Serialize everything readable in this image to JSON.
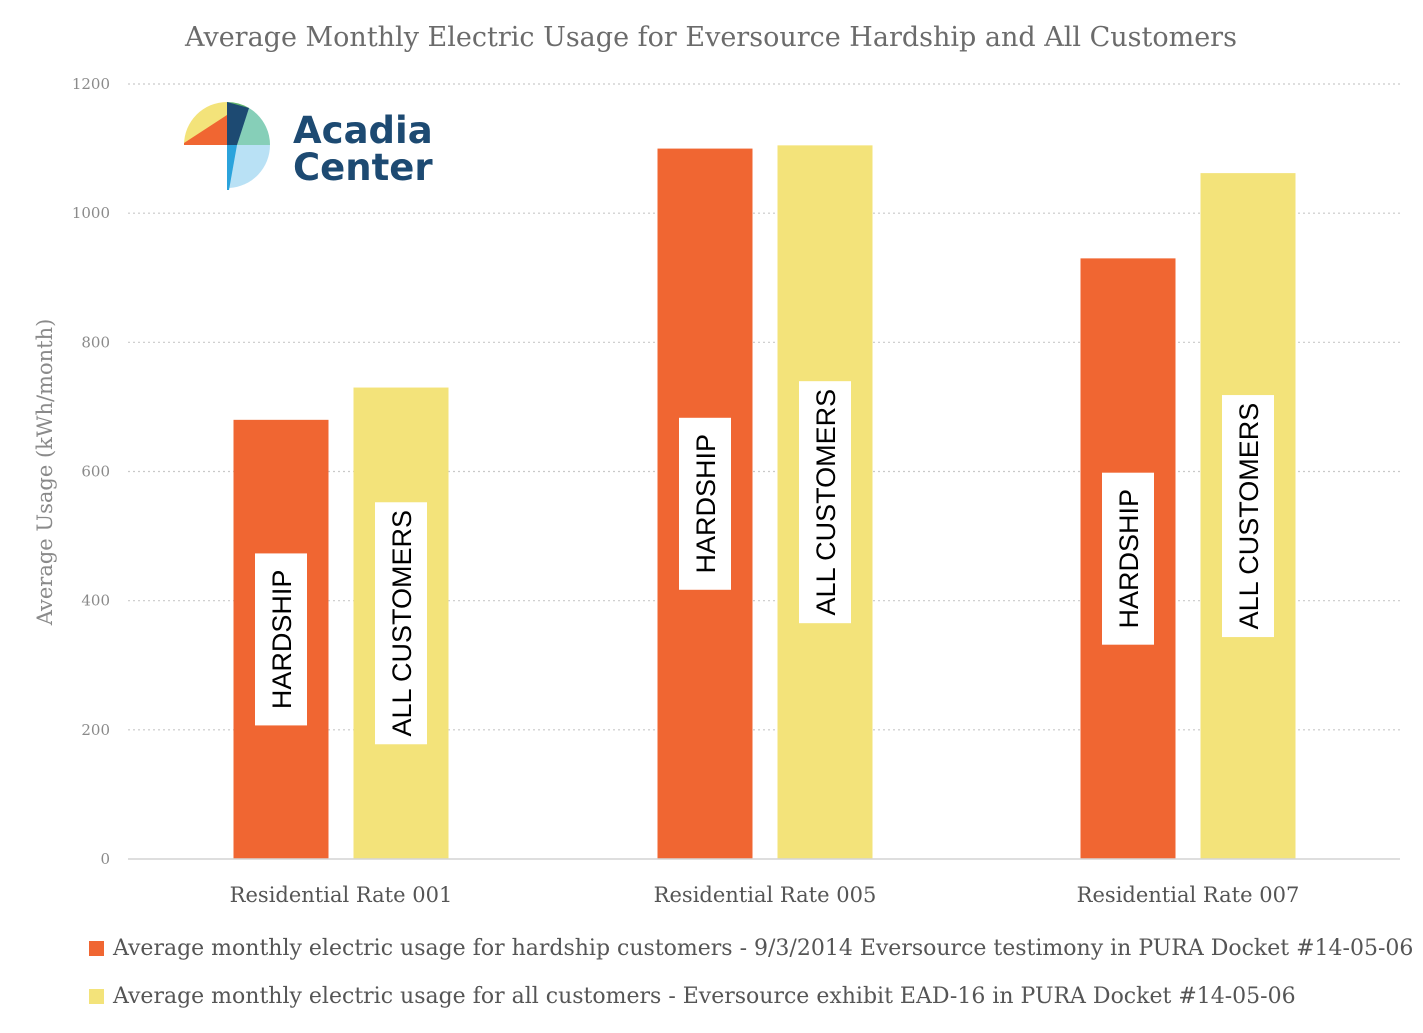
{
  "chart_data": {
    "type": "bar",
    "title": "Average Monthly Electric Usage for Eversource Hardship and All Customers",
    "ylabel": "Average Usage (kWh/month)",
    "xlabel": "",
    "ylim": [
      0,
      1200
    ],
    "yticks": [
      0,
      200,
      400,
      600,
      800,
      1000,
      1200
    ],
    "grid": true,
    "legend_position": "bottom",
    "categories": [
      "Residential Rate 001",
      "Residential Rate 005",
      "Residential Rate 007"
    ],
    "series": [
      {
        "name": "Average monthly electric usage for hardship customers - 9/3/2014 Eversource testimony in PURA Docket #14-05-06",
        "bar_label": "HARDSHIP",
        "color": "#f06632",
        "values": [
          680,
          1100,
          930
        ]
      },
      {
        "name": "Average monthly electric usage for all customers - Eversource exhibit EAD-16 in PURA Docket #14-05-06",
        "bar_label": "ALL CUSTOMERS",
        "color": "#f3e37a",
        "values": [
          730,
          1105,
          1062
        ]
      }
    ]
  },
  "logo": {
    "line1": "Acadia",
    "line2": "Center"
  }
}
